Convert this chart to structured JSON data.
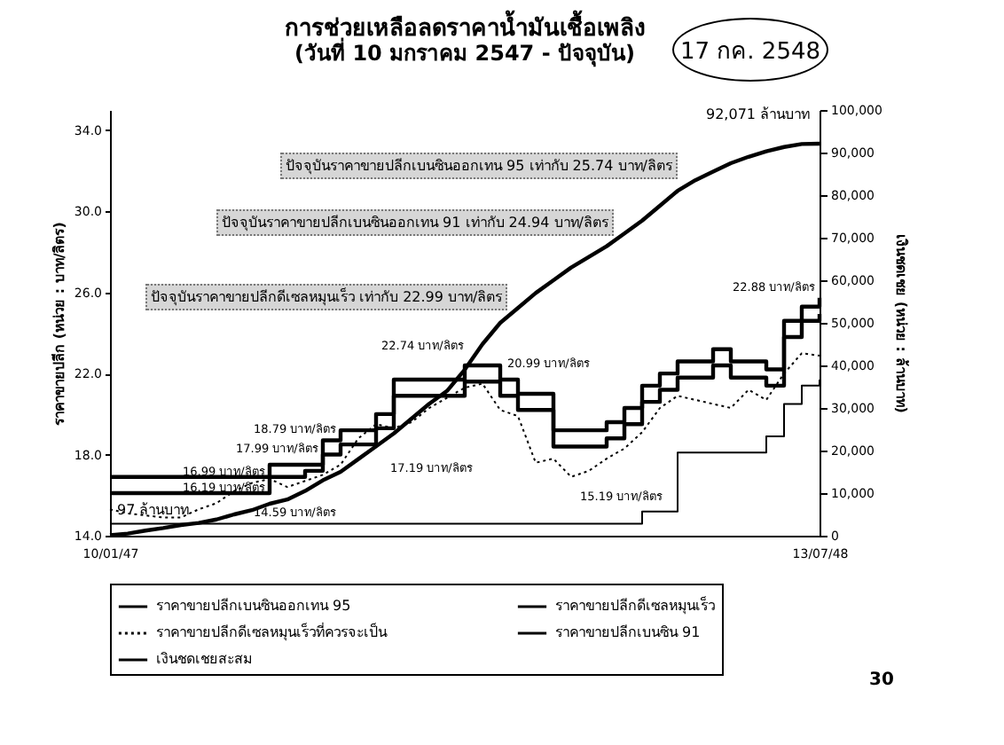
{
  "chart_data": {
    "type": "step",
    "title": "การช่วยเหลือลดราคาน้ำมันเชื้อเพลิง",
    "subtitle": "(วันที่ 10 มกราคม 2547 - ปัจจุบัน)",
    "ylabel": "ราคาขายปลีก (หน่วย : บาท/ลิตร)",
    "y2label": "เงินชดเชย (หน่วย : ล้านบาท)",
    "categories": [
      "10/01/47",
      null,
      null,
      null,
      null,
      null,
      null,
      null,
      null,
      null,
      null,
      null,
      null,
      null,
      null,
      null,
      null,
      null,
      null,
      null,
      null,
      null,
      null,
      null,
      null,
      null,
      null,
      null,
      null,
      null,
      null,
      null,
      null,
      null,
      null,
      null,
      null,
      null,
      null,
      null,
      "13/07/48"
    ],
    "ylim": [
      14,
      35
    ],
    "yticks": [
      {
        "value": 14,
        "label": "14.0"
      },
      {
        "value": 18,
        "label": "18.0"
      },
      {
        "value": 22,
        "label": "22.0"
      },
      {
        "value": 26,
        "label": "26.0"
      },
      {
        "value": 30,
        "label": "30.0"
      },
      {
        "value": 34,
        "label": "34.0"
      }
    ],
    "y2lim": [
      0,
      100000
    ],
    "y2ticks": [
      {
        "value": 0,
        "label": "0"
      },
      {
        "value": 10000,
        "label": "10,000"
      },
      {
        "value": 20000,
        "label": "20,000"
      },
      {
        "value": 30000,
        "label": "30,000"
      },
      {
        "value": 40000,
        "label": "40,000"
      },
      {
        "value": 50000,
        "label": "50,000"
      },
      {
        "value": 60000,
        "label": "60,000"
      },
      {
        "value": 70000,
        "label": "70,000"
      },
      {
        "value": 80000,
        "label": "80,000"
      },
      {
        "value": 90000,
        "label": "90,000"
      },
      {
        "value": 100000,
        "label": "100,000"
      }
    ],
    "legend": "bottom",
    "series": [
      {
        "name": "ราคาขายปลีกเบนซินออกเทน 95",
        "color": "#000000",
        "type": "step",
        "values": [
          16.9,
          16.9,
          16.9,
          16.9,
          16.9,
          16.9,
          16.9,
          16.9,
          16.9,
          17.5,
          17.5,
          17.5,
          18.7,
          19.2,
          19.2,
          20.0,
          21.7,
          21.7,
          21.7,
          21.7,
          22.4,
          22.4,
          21.7,
          21.0,
          21.0,
          19.2,
          19.2,
          19.2,
          19.6,
          20.3,
          21.4,
          22.0,
          22.6,
          22.6,
          23.2,
          22.6,
          22.6,
          22.2,
          24.6,
          25.3,
          25.74
        ]
      },
      {
        "name": "ราคาขายปลีกดีเซลหมุนเร็ว",
        "color": "#000000",
        "type": "step",
        "values": [
          14.59,
          14.59,
          14.59,
          14.59,
          14.59,
          14.59,
          14.59,
          14.59,
          14.59,
          14.59,
          14.59,
          14.59,
          14.59,
          14.59,
          14.59,
          14.59,
          14.59,
          14.59,
          14.59,
          14.59,
          14.59,
          14.59,
          14.59,
          14.59,
          14.59,
          14.59,
          14.59,
          14.59,
          14.59,
          14.59,
          15.19,
          15.19,
          18.1,
          18.1,
          18.1,
          18.1,
          18.1,
          18.9,
          20.5,
          21.4,
          21.7
        ]
      },
      {
        "name": "ราคาขายปลีกดีเซลหมุนเร็วที่ควรจะเป็น",
        "color": "#000000",
        "type": "line",
        "line_style": "dotted",
        "values": [
          15.3,
          15.1,
          15.0,
          14.9,
          14.9,
          15.3,
          15.6,
          16.2,
          16.6,
          16.8,
          16.4,
          16.7,
          17.0,
          17.5,
          18.8,
          19.5,
          19.3,
          19.6,
          20.3,
          20.8,
          21.3,
          21.5,
          20.2,
          19.9,
          17.6,
          17.8,
          16.9,
          17.2,
          17.8,
          18.3,
          19.1,
          20.3,
          20.9,
          20.7,
          20.5,
          20.3,
          21.2,
          20.7,
          22.0,
          23.0,
          22.88
        ]
      },
      {
        "name": "ราคาขายปลีกเบนซิน 91",
        "color": "#000000",
        "type": "step",
        "values": [
          16.1,
          16.1,
          16.1,
          16.1,
          16.1,
          16.1,
          16.1,
          16.1,
          16.1,
          16.9,
          16.9,
          17.2,
          18.0,
          18.5,
          18.5,
          19.3,
          20.9,
          20.9,
          20.9,
          20.9,
          21.6,
          21.6,
          20.9,
          20.2,
          20.2,
          18.4,
          18.4,
          18.4,
          18.8,
          19.5,
          20.6,
          21.2,
          21.8,
          21.8,
          22.4,
          21.8,
          21.8,
          21.4,
          23.8,
          24.6,
          24.94
        ]
      },
      {
        "name": "เงินชดเชยสะสม",
        "color": "#000000",
        "type": "line",
        "axis": "y2",
        "values": [
          97,
          500,
          1200,
          1800,
          2500,
          3000,
          3800,
          5000,
          6000,
          7500,
          8500,
          10500,
          13000,
          15000,
          18000,
          21000,
          24000,
          27500,
          31000,
          34000,
          39000,
          45000,
          50000,
          53500,
          57000,
          60000,
          63000,
          65500,
          68000,
          71000,
          74000,
          77500,
          81000,
          83500,
          85500,
          87500,
          89000,
          90300,
          91300,
          92000,
          92071
        ]
      }
    ],
    "annotations": [
      "17 กค. 2548",
      "ปัจจุบันราคาขายปลีกเบนซินออกเทน 95 เท่ากับ 25.74 บาท/ลิตร",
      "ปัจจุบันราคาขายปลีกเบนซินออกเทน 91 เท่ากับ 24.94 บาท/ลิตร",
      "ปัจจุบันราคาขายปลีกดีเซลหมุนเร็ว เท่ากับ 22.99 บาท/ลิตร",
      "92,071 ล้านบาท",
      "97 ล้านบาท",
      "30",
      "16.99 บาท/ลิตร",
      "16.19 บาท/ลิตร",
      "14.59 บาท/ลิตร",
      "18.79 บาท/ลิตร",
      "17.99 บาท/ลิตร",
      "17.19 บาท/ลิตร",
      "22.74 บาท/ลิตร",
      "20.99 บาท/ลิตร",
      "15.19 บาท/ลิตร",
      "22.88 บาท/ลิตร"
    ]
  }
}
